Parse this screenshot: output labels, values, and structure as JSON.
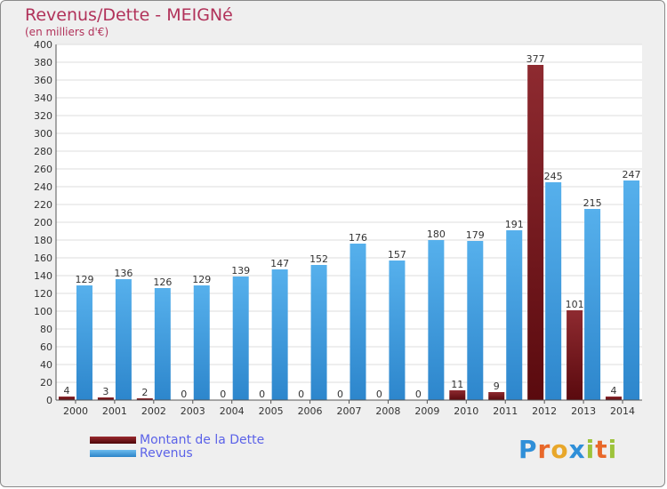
{
  "chart_data": {
    "type": "bar",
    "title": "Revenus/Dette - MEIGNé",
    "subtitle": "(en milliers d'€)",
    "categories": [
      "2000",
      "2001",
      "2002",
      "2003",
      "2004",
      "2005",
      "2006",
      "2007",
      "2008",
      "2009",
      "2010",
      "2011",
      "2012",
      "2013",
      "2014"
    ],
    "series": [
      {
        "name": "Montant de la Dette",
        "color": "#6e0d12",
        "values": [
          4,
          3,
          2,
          0,
          0,
          0,
          0,
          0,
          0,
          0,
          11,
          9,
          377,
          101,
          4
        ]
      },
      {
        "name": "Revenus",
        "color": "#3f9fe2",
        "values": [
          129,
          136,
          126,
          129,
          139,
          147,
          152,
          176,
          157,
          180,
          179,
          191,
          245,
          215,
          247
        ]
      }
    ],
    "ylim": [
      0,
      400
    ],
    "ytick_step": 20,
    "grid": true,
    "legend": "bottom-left"
  },
  "brand": {
    "letters": [
      "P",
      "r",
      "o",
      "x",
      "i",
      "t",
      "i"
    ],
    "colors": [
      "#2f8fd8",
      "#e8682a",
      "#e8a72a",
      "#2f8fd8",
      "#9dc33b",
      "#e8682a",
      "#9dc33b"
    ]
  }
}
